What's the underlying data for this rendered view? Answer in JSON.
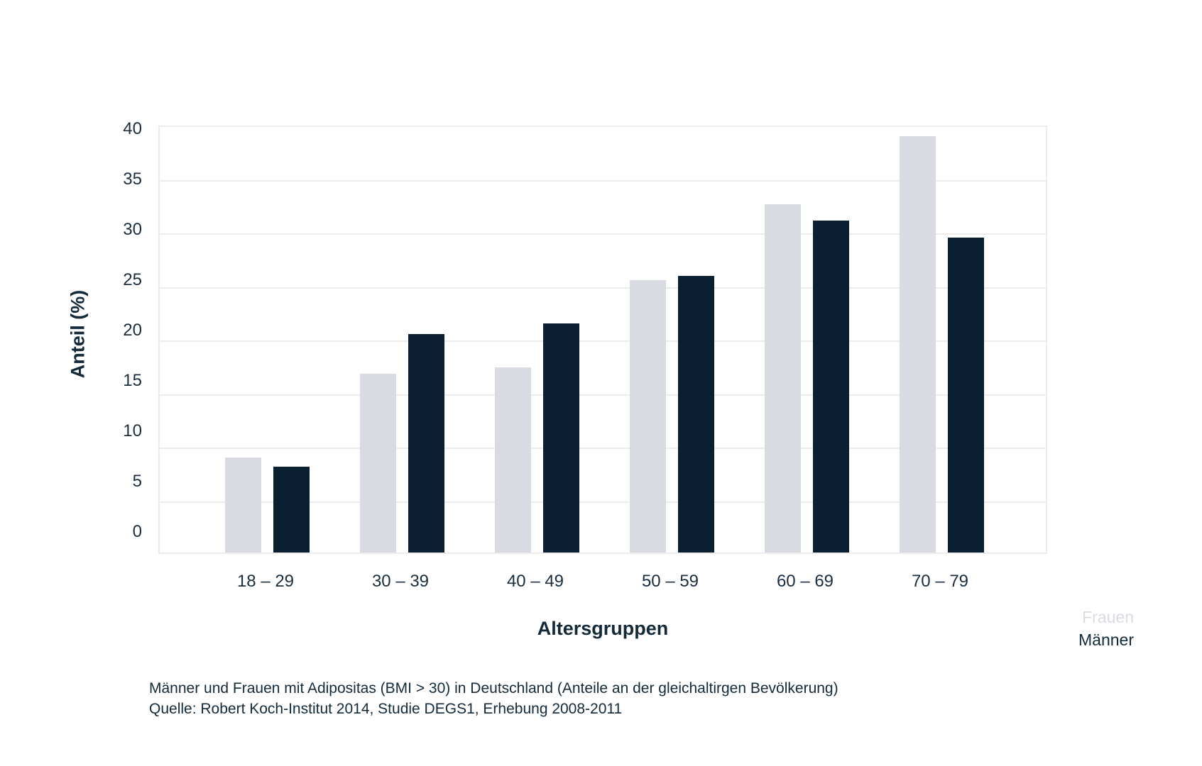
{
  "chart_data": {
    "type": "bar",
    "title": "",
    "categories": [
      "18 – 29",
      "30 – 39",
      "40 – 49",
      "50 – 59",
      "60 – 69",
      "70 – 79"
    ],
    "series": [
      {
        "name": "Frauen",
        "color": "#d8dce2",
        "values": [
          8.9,
          16.7,
          17.3,
          25.4,
          32.5,
          38.9
        ]
      },
      {
        "name": "Männer",
        "color": "#0a2032",
        "values": [
          8.0,
          20.4,
          21.4,
          25.8,
          31.0,
          29.4
        ]
      }
    ],
    "xlabel": "Altersgruppen",
    "ylabel": "Anteil (%)",
    "ylim": [
      0,
      40
    ],
    "yticks": [
      0,
      5,
      10,
      15,
      20,
      25,
      30,
      35,
      40
    ],
    "grid": true,
    "gridline_color": "#ececec",
    "background_color": "#ffffff",
    "legend_position": "bottom-right"
  },
  "legend": {
    "frauen_label": "Frauen",
    "maenner_label": "Männer"
  },
  "caption": {
    "line1": "Männer und Frauen mit Adipositas (BMI > 30) in Deutschland (Anteile an der gleichaltirgen Bevölkerung)",
    "line2": "Quelle: Robert Koch-Institut 2014, Studie DEGS1, Erhebung 2008-2011"
  }
}
